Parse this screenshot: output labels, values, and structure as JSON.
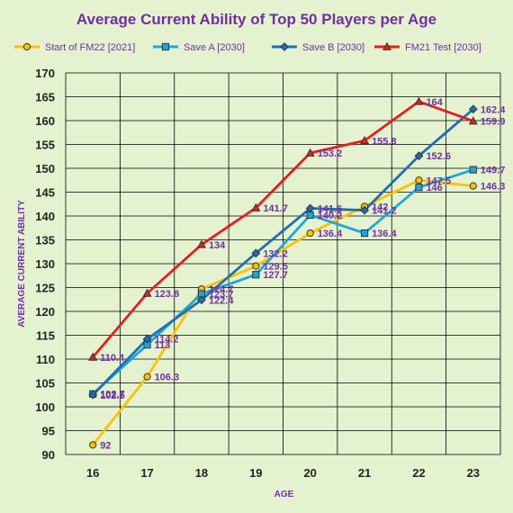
{
  "colors": {
    "background": "#e4f2d0",
    "plot_background": "#e4f2d0",
    "grid": "#000000",
    "title_text": "#7030a0",
    "label_text": "#7030a0"
  },
  "chart_data": {
    "type": "line",
    "title": "Average Current Ability of Top 50 Players per Age",
    "xlabel": "AGE",
    "ylabel": "AVERAGE CURRENT ABILITY",
    "x": [
      16,
      17,
      18,
      19,
      20,
      21,
      22,
      23
    ],
    "ylim": [
      90,
      170
    ],
    "y_step": 5,
    "grid": true,
    "legend_position": "top",
    "series": [
      {
        "name": "Start of FM22 [2021]",
        "color": "#ffc000",
        "marker": "circle",
        "marker_fill": "#ffc000",
        "values": [
          92,
          106.3,
          124.7,
          129.5,
          136.4,
          142,
          147.5,
          146.3
        ],
        "labels": [
          "92",
          "106.3",
          "124.7",
          "129.5",
          "136.4",
          "142",
          "147.5",
          "146.3"
        ]
      },
      {
        "name": "Save A [2030]",
        "color": "#1aa7e0",
        "marker": "square",
        "marker_fill": "#1aa7e0",
        "values": [
          102.7,
          113,
          123.7,
          127.7,
          140.2,
          136.4,
          146,
          149.7
        ],
        "labels": [
          "102.7",
          "113",
          "123.7",
          "127.7",
          "140.2",
          "136.4",
          "146",
          "149.7"
        ]
      },
      {
        "name": "Save B [2030]",
        "color": "#1f6eb4",
        "marker": "diamond",
        "marker_fill": "#1f6eb4",
        "values": [
          102.5,
          114.2,
          122.4,
          132.2,
          141.6,
          141.2,
          152.6,
          162.4
        ],
        "labels": [
          "102.5",
          "114.2",
          "122.4",
          "132.2",
          "141.6",
          "141.2",
          "152.6",
          "162.4"
        ]
      },
      {
        "name": "FM21 Test [2030]",
        "color": "#e81c1c",
        "marker": "triangle",
        "marker_fill": "#e81c1c",
        "values": [
          110.4,
          123.8,
          134,
          141.7,
          153.2,
          155.8,
          164,
          159.9
        ],
        "labels": [
          "110.4",
          "123.8",
          "134",
          "141.7",
          "153.2",
          "155.8",
          "164",
          "159.9"
        ]
      }
    ]
  }
}
